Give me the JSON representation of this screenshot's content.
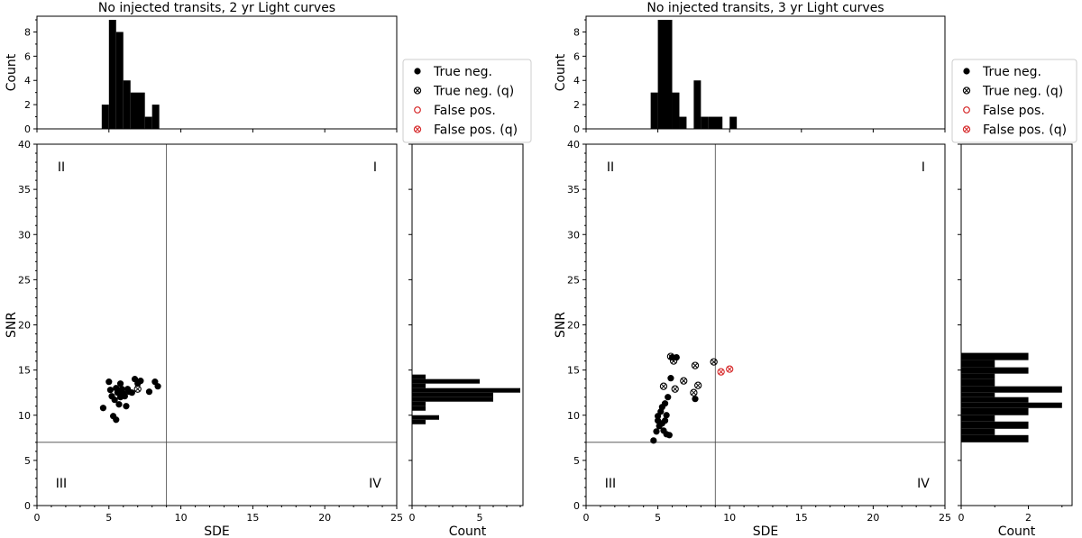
{
  "chart_data": [
    {
      "title": "No injected transits, 2 yr Light curves",
      "type": "scatter",
      "xlabel": "SDE",
      "ylabel": "SNR",
      "xlim": [
        0,
        25
      ],
      "ylim": [
        0,
        40
      ],
      "x_ticks": [
        0,
        5,
        10,
        15,
        20,
        25
      ],
      "y_ticks": [
        0,
        5,
        10,
        15,
        20,
        25,
        30,
        35,
        40
      ],
      "thresholds": {
        "sde": 9,
        "snr": 7
      },
      "quadrants": [
        "I",
        "II",
        "III",
        "IV"
      ],
      "series": [
        {
          "name": "True neg.",
          "marker": "filled",
          "color": "#000000",
          "points": [
            [
              4.6,
              10.8
            ],
            [
              5.0,
              13.7
            ],
            [
              5.1,
              12.8
            ],
            [
              5.2,
              12.1
            ],
            [
              5.3,
              9.9
            ],
            [
              5.4,
              11.7
            ],
            [
              5.5,
              9.5
            ],
            [
              5.5,
              13.0
            ],
            [
              5.6,
              12.5
            ],
            [
              5.7,
              11.2
            ],
            [
              5.8,
              13.5
            ],
            [
              5.8,
              12.0
            ],
            [
              5.9,
              12.9
            ],
            [
              6.0,
              12.4
            ],
            [
              6.1,
              12.1
            ],
            [
              6.2,
              11.0
            ],
            [
              6.3,
              12.9
            ],
            [
              6.4,
              12.6
            ],
            [
              6.6,
              12.5
            ],
            [
              6.8,
              14.0
            ],
            [
              7.0,
              13.5
            ],
            [
              7.2,
              13.8
            ],
            [
              7.8,
              12.6
            ],
            [
              8.2,
              13.7
            ],
            [
              8.4,
              13.2
            ]
          ]
        },
        {
          "name": "True neg. (q)",
          "marker": "crossed",
          "color": "#000000",
          "points": [
            [
              7.0,
              12.9
            ]
          ]
        }
      ],
      "top_hist": {
        "ylabel": "Count",
        "ylim": [
          0,
          9.3
        ],
        "y_ticks": [
          0,
          2,
          4,
          6,
          8
        ],
        "bins": [
          [
            4.5,
            5.0,
            2
          ],
          [
            5.0,
            5.5,
            9
          ],
          [
            5.5,
            6.0,
            8
          ],
          [
            6.0,
            6.5,
            4
          ],
          [
            6.5,
            7.5,
            3
          ],
          [
            7.5,
            8.0,
            1
          ],
          [
            8.0,
            8.5,
            2
          ]
        ]
      },
      "right_hist": {
        "xlabel": "Count",
        "xlim": [
          0,
          8.2
        ],
        "x_ticks": [
          0,
          5
        ],
        "bins": [
          [
            9.0,
            9.5,
            1
          ],
          [
            9.5,
            10.0,
            2
          ],
          [
            10.0,
            10.5,
            0
          ],
          [
            10.5,
            11.0,
            1
          ],
          [
            11.0,
            11.5,
            1
          ],
          [
            11.5,
            12.0,
            6
          ],
          [
            12.0,
            12.5,
            6
          ],
          [
            12.5,
            13.0,
            8
          ],
          [
            13.0,
            13.5,
            1
          ],
          [
            13.5,
            14.0,
            5
          ],
          [
            14.0,
            14.5,
            1
          ]
        ]
      }
    },
    {
      "title": "No injected transits, 3 yr Light curves",
      "type": "scatter",
      "xlabel": "SDE",
      "ylabel": "SNR",
      "xlim": [
        0,
        25
      ],
      "ylim": [
        0,
        40
      ],
      "x_ticks": [
        0,
        5,
        10,
        15,
        20,
        25
      ],
      "y_ticks": [
        0,
        5,
        10,
        15,
        20,
        25,
        30,
        35,
        40
      ],
      "thresholds": {
        "sde": 9,
        "snr": 7
      },
      "quadrants": [
        "I",
        "II",
        "III",
        "IV"
      ],
      "series": [
        {
          "name": "True neg.",
          "marker": "filled",
          "color": "#000000",
          "points": [
            [
              4.7,
              7.2
            ],
            [
              4.9,
              8.2
            ],
            [
              5.0,
              9.4
            ],
            [
              5.0,
              9.9
            ],
            [
              5.1,
              8.8
            ],
            [
              5.2,
              10.4
            ],
            [
              5.3,
              9.1
            ],
            [
              5.3,
              10.9
            ],
            [
              5.4,
              8.3
            ],
            [
              5.5,
              9.4
            ],
            [
              5.5,
              11.3
            ],
            [
              5.6,
              7.9
            ],
            [
              5.6,
              10.0
            ],
            [
              5.7,
              12.0
            ],
            [
              5.8,
              7.8
            ],
            [
              5.9,
              14.1
            ],
            [
              6.0,
              16.4
            ],
            [
              6.3,
              16.4
            ],
            [
              7.6,
              11.8
            ]
          ]
        },
        {
          "name": "True neg. (q)",
          "marker": "crossed",
          "color": "#000000",
          "points": [
            [
              5.4,
              13.2
            ],
            [
              5.9,
              16.5
            ],
            [
              6.1,
              16.0
            ],
            [
              6.2,
              12.9
            ],
            [
              6.8,
              13.8
            ],
            [
              7.5,
              12.5
            ],
            [
              7.6,
              15.5
            ],
            [
              7.8,
              13.3
            ],
            [
              8.9,
              15.9
            ]
          ]
        },
        {
          "name": "False pos.",
          "marker": "open",
          "color": "#d62728",
          "points": []
        },
        {
          "name": "False pos. (q)",
          "marker": "crossed",
          "color": "#d62728",
          "points": [
            [
              9.4,
              14.8
            ],
            [
              10.0,
              15.1
            ]
          ]
        }
      ],
      "top_hist": {
        "ylabel": "Count",
        "ylim": [
          0,
          9.3
        ],
        "y_ticks": [
          0,
          2,
          4,
          6,
          8
        ],
        "bins": [
          [
            4.5,
            5.0,
            3
          ],
          [
            5.0,
            6.0,
            9
          ],
          [
            6.0,
            6.5,
            3
          ],
          [
            6.5,
            7.0,
            1
          ],
          [
            7.5,
            8.0,
            4
          ],
          [
            8.0,
            8.5,
            1
          ],
          [
            8.5,
            9.5,
            1
          ],
          [
            10.0,
            10.5,
            1
          ]
        ]
      },
      "right_hist": {
        "xlabel": "Count",
        "xlim": [
          0,
          3.3
        ],
        "x_ticks": [
          0,
          2
        ],
        "bins": [
          [
            7.0,
            7.8,
            2
          ],
          [
            7.8,
            8.5,
            1
          ],
          [
            8.5,
            9.3,
            2
          ],
          [
            9.3,
            10.0,
            1
          ],
          [
            10.0,
            10.8,
            2
          ],
          [
            10.8,
            11.4,
            3
          ],
          [
            11.4,
            12.0,
            2
          ],
          [
            12.0,
            12.5,
            1
          ],
          [
            12.5,
            13.2,
            3
          ],
          [
            13.2,
            14.0,
            1
          ],
          [
            14.0,
            14.6,
            1
          ],
          [
            14.6,
            15.3,
            2
          ],
          [
            15.3,
            16.1,
            1
          ],
          [
            16.1,
            16.9,
            2
          ]
        ]
      }
    }
  ],
  "legends": [
    [
      "True neg.",
      "True neg. (q)",
      "False pos.",
      "False pos. (q)"
    ],
    [
      "True neg.",
      "True neg. (q)",
      "False pos.",
      "False pos. (q)"
    ]
  ]
}
